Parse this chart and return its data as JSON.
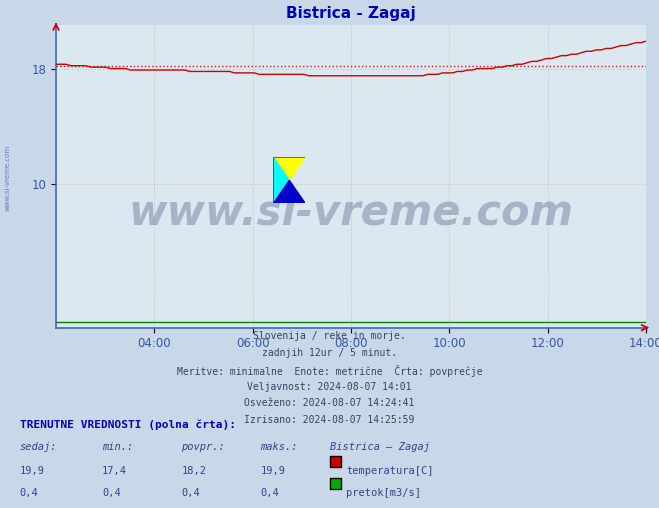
{
  "title": "Bistrica - Zagaj",
  "title_color": "#0000bb",
  "title_fontsize": 11,
  "bg_color": "#c8d8e8",
  "plot_bg_color": "#dce8f0",
  "grid_color": "#ddaaaa",
  "x_min": 0,
  "x_max": 144,
  "y_min": 0,
  "y_max": 21.0,
  "y_ticks": [
    10,
    18
  ],
  "x_tick_positions": [
    24,
    48,
    72,
    96,
    120,
    144
  ],
  "x_tick_labels": [
    "04:00",
    "06:00",
    "08:00",
    "10:00",
    "12:00",
    "14:00"
  ],
  "avg_value": 18.2,
  "temp_color": "#cc0000",
  "flow_color": "#008800",
  "watermark_text": "www.si-vreme.com",
  "watermark_color": "#1a3060",
  "watermark_alpha": 0.28,
  "watermark_fontsize": 30,
  "side_watermark": "www.si-vreme.com",
  "info_line1": "Slovenija / reke in morje.",
  "info_line2": "zadnjih 12ur / 5 minut.",
  "info_line3": "Meritve: minimalne  Enote: metrične  Črta: povprečje",
  "info_line4": "Veljavnost: 2024-08-07 14:01",
  "info_line5": "Osveženo: 2024-08-07 14:24:41",
  "info_line6": "Izrisano: 2024-08-07 14:25:59",
  "table_header": "TRENUTNE VREDNOSTI (polna črta):",
  "col_headers": [
    "sedaj:",
    "min.:",
    "povpr.:",
    "maks.:",
    "Bistrica – Zagaj"
  ],
  "row1_vals": [
    "19,9",
    "17,4",
    "18,2",
    "19,9"
  ],
  "row1_label": "temperatura[C]",
  "row2_vals": [
    "0,4",
    "0,4",
    "0,4",
    "0,4"
  ],
  "row2_label": "pretok[m3/s]",
  "temp_data": [
    18.3,
    18.3,
    18.3,
    18.2,
    18.2,
    18.2,
    18.2,
    18.1,
    18.1,
    18.1,
    18.1,
    18.0,
    18.0,
    18.0,
    18.0,
    17.9,
    17.9,
    17.9,
    17.9,
    17.9,
    17.9,
    17.9,
    17.9,
    17.9,
    17.9,
    17.9,
    17.9,
    17.8,
    17.8,
    17.8,
    17.8,
    17.8,
    17.8,
    17.8,
    17.8,
    17.8,
    17.7,
    17.7,
    17.7,
    17.7,
    17.7,
    17.6,
    17.6,
    17.6,
    17.6,
    17.6,
    17.6,
    17.6,
    17.6,
    17.6,
    17.6,
    17.5,
    17.5,
    17.5,
    17.5,
    17.5,
    17.5,
    17.5,
    17.5,
    17.5,
    17.5,
    17.5,
    17.5,
    17.5,
    17.5,
    17.5,
    17.5,
    17.5,
    17.5,
    17.5,
    17.5,
    17.5,
    17.5,
    17.5,
    17.5,
    17.6,
    17.6,
    17.6,
    17.7,
    17.7,
    17.7,
    17.8,
    17.8,
    17.9,
    17.9,
    18.0,
    18.0,
    18.0,
    18.0,
    18.1,
    18.1,
    18.2,
    18.2,
    18.3,
    18.3,
    18.4,
    18.5,
    18.5,
    18.6,
    18.7,
    18.7,
    18.8,
    18.9,
    18.9,
    19.0,
    19.0,
    19.1,
    19.2,
    19.2,
    19.3,
    19.3,
    19.4,
    19.4,
    19.5,
    19.6,
    19.6,
    19.7,
    19.8,
    19.8,
    19.9
  ],
  "flow_val": 0.4
}
